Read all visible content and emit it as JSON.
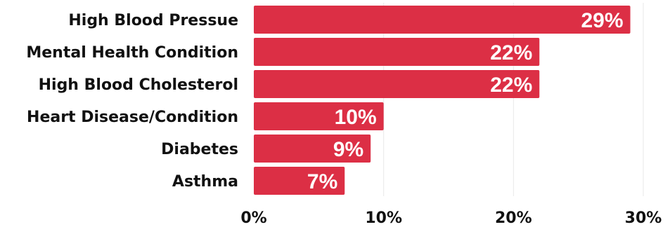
{
  "chart_data": {
    "type": "bar",
    "orientation": "horizontal",
    "categories": [
      "High Blood Pressue",
      "Mental Health Condition",
      "High Blood Cholesterol",
      "Heart Disease/Condition",
      "Diabetes",
      "Asthma"
    ],
    "values": [
      29,
      22,
      22,
      10,
      9,
      7
    ],
    "data_labels": [
      "29%",
      "22%",
      "22%",
      "10%",
      "9%",
      "7%"
    ],
    "x_ticks": [
      "0%",
      "10%",
      "20%",
      "30%"
    ],
    "x_tick_values": [
      0,
      10,
      20,
      30
    ],
    "xlim": [
      0,
      30
    ],
    "title": "",
    "xlabel": "",
    "ylabel": "",
    "grid": true,
    "legend": "none",
    "bar_color": "#dc2f45"
  }
}
